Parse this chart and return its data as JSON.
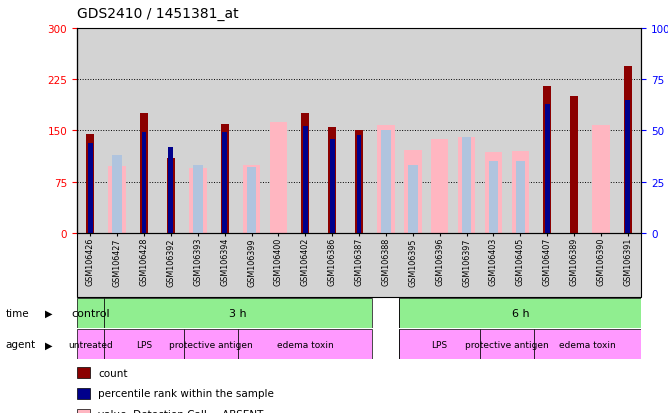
{
  "title": "GDS2410 / 1451381_at",
  "samples": [
    "GSM106426",
    "GSM106427",
    "GSM106428",
    "GSM106392",
    "GSM106393",
    "GSM106394",
    "GSM106399",
    "GSM106400",
    "GSM106402",
    "GSM106386",
    "GSM106387",
    "GSM106388",
    "GSM106395",
    "GSM106396",
    "GSM106397",
    "GSM106403",
    "GSM106405",
    "GSM106407",
    "GSM106389",
    "GSM106390",
    "GSM106391"
  ],
  "count": [
    145,
    0,
    175,
    110,
    0,
    160,
    0,
    0,
    175,
    155,
    150,
    0,
    0,
    0,
    0,
    0,
    0,
    215,
    200,
    0,
    245
  ],
  "rank": [
    44,
    0,
    49,
    42,
    0,
    49,
    0,
    0,
    52,
    46,
    48,
    0,
    0,
    0,
    0,
    0,
    0,
    63,
    0,
    0,
    65
  ],
  "value_absent": [
    0,
    98,
    0,
    0,
    95,
    0,
    100,
    163,
    0,
    0,
    0,
    158,
    122,
    138,
    140,
    118,
    120,
    0,
    0,
    158,
    0
  ],
  "rank_absent": [
    0,
    38,
    0,
    0,
    33,
    0,
    32,
    0,
    0,
    0,
    0,
    50,
    33,
    0,
    47,
    35,
    35,
    0,
    0,
    0,
    0
  ],
  "ylim_left": [
    0,
    300
  ],
  "ylim_right": [
    0,
    100
  ],
  "yticks_left": [
    0,
    75,
    150,
    225,
    300
  ],
  "yticks_right": [
    0,
    25,
    50,
    75,
    100
  ],
  "color_count": "#8B0000",
  "color_rank": "#00008B",
  "color_value_absent": "#FFB6C1",
  "color_rank_absent": "#B0C4DE",
  "color_bg_plot": "#D3D3D3",
  "color_time_green": "#90EE90",
  "color_agent_pink": "#FF99FF",
  "time_group_spans": [
    [
      0,
      0,
      "control"
    ],
    [
      1,
      10,
      "3 h"
    ],
    [
      12,
      20,
      "6 h"
    ]
  ],
  "agent_group_spans": [
    [
      0,
      0,
      "untreated"
    ],
    [
      1,
      3,
      "LPS"
    ],
    [
      4,
      5,
      "protective antigen"
    ],
    [
      6,
      10,
      "edema toxin"
    ],
    [
      12,
      14,
      "LPS"
    ],
    [
      15,
      16,
      "protective antigen"
    ],
    [
      17,
      20,
      "edema toxin"
    ]
  ],
  "title_fontsize": 10
}
